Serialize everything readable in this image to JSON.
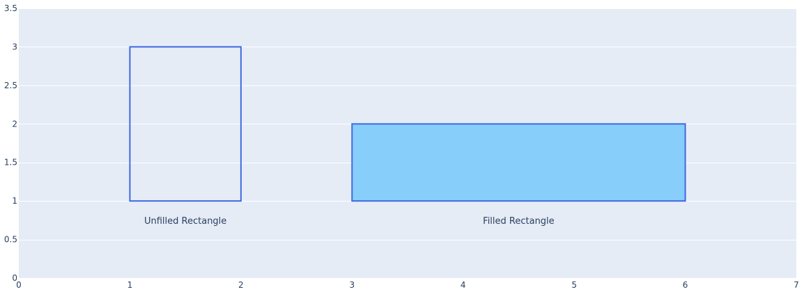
{
  "chart_data": {
    "type": "shapes",
    "xlim": [
      0,
      7
    ],
    "ylim": [
      0,
      3.5
    ],
    "x_ticks": [
      0,
      1,
      2,
      3,
      4,
      5,
      6,
      7
    ],
    "y_ticks": [
      0,
      0.5,
      1,
      1.5,
      2,
      2.5,
      3,
      3.5
    ],
    "grid": true,
    "colors": {
      "plot_bg": "#e5ecf6",
      "grid": "#ffffff",
      "outline": "#4169e1",
      "fill": "#87cefa",
      "text": "#2a3f5f"
    },
    "shapes": [
      {
        "kind": "rect",
        "x0": 1,
        "x1": 2,
        "y0": 1,
        "y1": 3,
        "filled": false
      },
      {
        "kind": "rect",
        "x0": 3,
        "x1": 6,
        "y0": 1,
        "y1": 2,
        "filled": true
      }
    ],
    "annotations": [
      {
        "text": "Unfilled Rectangle",
        "x": 1.5,
        "y": 0.75
      },
      {
        "text": "Filled Rectangle",
        "x": 4.5,
        "y": 0.75
      }
    ]
  }
}
